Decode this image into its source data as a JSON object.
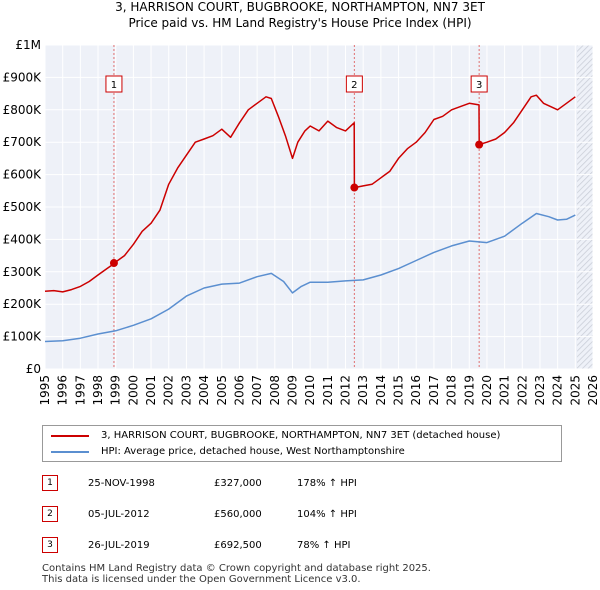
{
  "title_line1": "3, HARRISON COURT, BUGBROOKE, NORTHAMPTON, NN7 3ET",
  "title_line2": "Price paid vs. HM Land Registry's House Price Index (HPI)",
  "chart_data": {
    "type": "line",
    "ylim": [
      0,
      1000000
    ],
    "xlim": [
      1995,
      2026
    ],
    "y_ticks": [
      {
        "value": 0,
        "label": "£0"
      },
      {
        "value": 100000,
        "label": "£100K"
      },
      {
        "value": 200000,
        "label": "£200K"
      },
      {
        "value": 300000,
        "label": "£300K"
      },
      {
        "value": 400000,
        "label": "£400K"
      },
      {
        "value": 500000,
        "label": "£500K"
      },
      {
        "value": 600000,
        "label": "£600K"
      },
      {
        "value": 700000,
        "label": "£700K"
      },
      {
        "value": 800000,
        "label": "£800K"
      },
      {
        "value": 900000,
        "label": "£900K"
      },
      {
        "value": 1000000,
        "label": "£1M"
      }
    ],
    "x_ticks": [
      "1995",
      "1996",
      "1997",
      "1998",
      "1999",
      "2000",
      "2001",
      "2002",
      "2003",
      "2004",
      "2005",
      "2006",
      "2007",
      "2008",
      "2009",
      "2010",
      "2011",
      "2012",
      "2013",
      "2014",
      "2015",
      "2016",
      "2017",
      "2018",
      "2019",
      "2020",
      "2021",
      "2022",
      "2023",
      "2024",
      "2025",
      "2026"
    ],
    "grid": true,
    "data_end_year": 2025.1,
    "series": [
      {
        "name": "3, HARRISON COURT, BUGBROOKE, NORTHAMPTON, NN7 3ET (detached house)",
        "color": "#cc0000",
        "x": [
          1995.0,
          1995.5,
          1996.0,
          1996.5,
          1997.0,
          1997.5,
          1998.0,
          1998.5,
          1998.9,
          1998.91,
          1999.5,
          2000.0,
          2000.5,
          2001.0,
          2001.5,
          2002.0,
          2002.5,
          2003.0,
          2003.5,
          2004.0,
          2004.5,
          2005.0,
          2005.5,
          2006.0,
          2006.5,
          2007.0,
          2007.5,
          2007.8,
          2008.2,
          2008.6,
          2009.0,
          2009.3,
          2009.7,
          2010.0,
          2010.5,
          2011.0,
          2011.5,
          2012.0,
          2012.49,
          2012.5,
          2013.0,
          2013.5,
          2014.0,
          2014.5,
          2015.0,
          2015.5,
          2016.0,
          2016.5,
          2017.0,
          2017.5,
          2018.0,
          2018.5,
          2019.0,
          2019.55,
          2019.56,
          2020.0,
          2020.5,
          2021.0,
          2021.5,
          2022.0,
          2022.5,
          2022.8,
          2023.2,
          2023.6,
          2024.0,
          2024.5,
          2025.0
        ],
        "values": [
          240000,
          242000,
          238000,
          245000,
          255000,
          270000,
          290000,
          310000,
          325000,
          327000,
          350000,
          385000,
          425000,
          450000,
          490000,
          570000,
          620000,
          660000,
          700000,
          710000,
          720000,
          740000,
          715000,
          760000,
          800000,
          820000,
          840000,
          835000,
          780000,
          720000,
          650000,
          700000,
          735000,
          750000,
          735000,
          765000,
          745000,
          735000,
          760000,
          560000,
          565000,
          570000,
          590000,
          610000,
          650000,
          680000,
          700000,
          730000,
          770000,
          780000,
          800000,
          810000,
          820000,
          815000,
          692500,
          700000,
          710000,
          730000,
          760000,
          800000,
          840000,
          845000,
          820000,
          810000,
          800000,
          820000,
          840000
        ]
      },
      {
        "name": "HPI: Average price, detached house, West Northamptonshire",
        "color": "#5b8fd0",
        "x": [
          1995.0,
          1996.0,
          1997.0,
          1998.0,
          1999.0,
          2000.0,
          2001.0,
          2002.0,
          2003.0,
          2004.0,
          2005.0,
          2006.0,
          2007.0,
          2007.8,
          2008.5,
          2009.0,
          2009.5,
          2010.0,
          2011.0,
          2012.0,
          2013.0,
          2014.0,
          2015.0,
          2016.0,
          2017.0,
          2018.0,
          2019.0,
          2020.0,
          2021.0,
          2022.0,
          2022.8,
          2023.5,
          2024.0,
          2024.5,
          2025.0
        ],
        "values": [
          85000,
          87000,
          95000,
          108000,
          118000,
          135000,
          155000,
          185000,
          225000,
          250000,
          262000,
          265000,
          285000,
          295000,
          270000,
          235000,
          255000,
          268000,
          268000,
          272000,
          275000,
          290000,
          310000,
          335000,
          360000,
          380000,
          395000,
          390000,
          410000,
          450000,
          480000,
          470000,
          460000,
          462000,
          475000
        ]
      }
    ],
    "annotations": [
      {
        "label": "1",
        "x": 1998.9,
        "value": 327000
      },
      {
        "label": "2",
        "x": 2012.5,
        "value": 560000
      },
      {
        "label": "3",
        "x": 2019.56,
        "value": 692500
      }
    ]
  },
  "legend": [
    {
      "label": "3, HARRISON COURT, BUGBROOKE, NORTHAMPTON, NN7 3ET (detached house)",
      "color": "#cc0000"
    },
    {
      "label": "HPI: Average price, detached house, West Northamptonshire",
      "color": "#5b8fd0"
    }
  ],
  "transactions": [
    {
      "num": "1",
      "date": "25-NOV-1998",
      "price": "£327,000",
      "hpi": "178% ↑ HPI"
    },
    {
      "num": "2",
      "date": "05-JUL-2012",
      "price": "£560,000",
      "hpi": "104% ↑ HPI"
    },
    {
      "num": "3",
      "date": "26-JUL-2019",
      "price": "£692,500",
      "hpi": "78% ↑ HPI"
    }
  ],
  "footer_line1": "Contains HM Land Registry data © Crown copyright and database right 2025.",
  "footer_line2": "This data is licensed under the Open Government Licence v3.0."
}
